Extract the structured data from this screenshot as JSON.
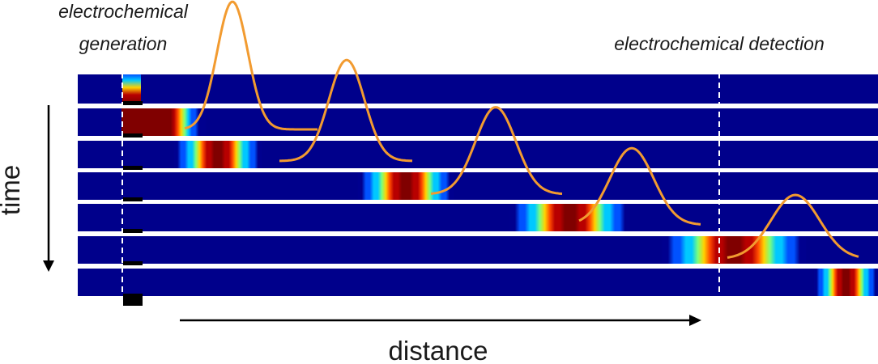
{
  "labels": {
    "generation_line1": "electrochemical",
    "generation_line2": "generation",
    "detection": "electrochemical detection",
    "time_axis": "time",
    "distance_axis": "distance"
  },
  "colors": {
    "strip_background": "#00008b",
    "separator": "#ffffff",
    "peak_trace": "#f29b30",
    "electrode_mark": "#000000",
    "arrow": "#000000",
    "colormap": [
      "#00008f",
      "#0052ff",
      "#00c8ff",
      "#7dff7a",
      "#ffd200",
      "#ff4b00",
      "#b80000",
      "#800000"
    ]
  },
  "strips": [
    {
      "row": 1,
      "band_center": null,
      "band_width": null,
      "profile": "generation-onset"
    },
    {
      "row": 2,
      "band_center": 0.11,
      "band_width": 0.05,
      "profile": "generation-growing"
    },
    {
      "row": 3,
      "band_center": 0.175,
      "band_width": 0.055,
      "profile": "gaussian"
    },
    {
      "row": 4,
      "band_center": 0.41,
      "band_width": 0.06,
      "profile": "gaussian"
    },
    {
      "row": 5,
      "band_center": 0.615,
      "band_width": 0.075,
      "profile": "gaussian"
    },
    {
      "row": 6,
      "band_center": 0.82,
      "band_width": 0.09,
      "profile": "gaussian"
    },
    {
      "row": 7,
      "band_center": 1.02,
      "band_width": 0.1,
      "profile": "gaussian"
    }
  ],
  "peaks": [
    {
      "index": 1,
      "relative_height": 1.0
    },
    {
      "index": 2,
      "relative_height": 0.79
    },
    {
      "index": 3,
      "relative_height": 0.68
    },
    {
      "index": 4,
      "relative_height": 0.6
    },
    {
      "index": 5,
      "relative_height": 0.5
    }
  ]
}
